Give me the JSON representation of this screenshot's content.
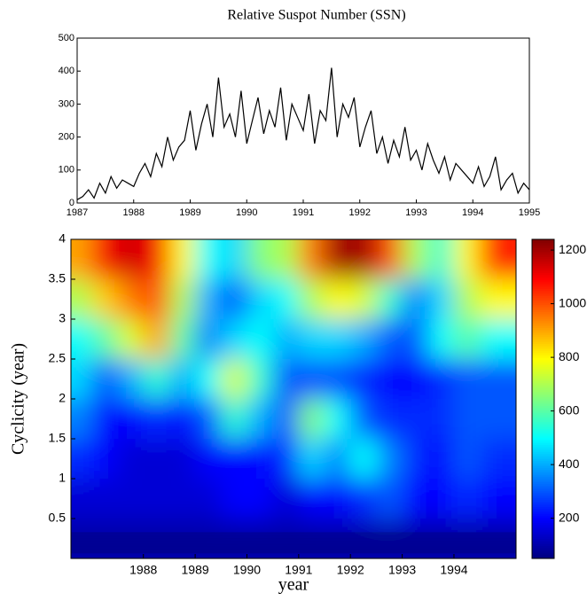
{
  "chart_data": [
    {
      "type": "line",
      "title": "Relative Suspot Number (SSN)",
      "color": "#000000",
      "x": [
        1987.0,
        1987.1,
        1987.2,
        1987.3,
        1987.4,
        1987.5,
        1987.6,
        1987.7,
        1987.8,
        1987.9,
        1988.0,
        1988.1,
        1988.2,
        1988.3,
        1988.4,
        1988.5,
        1988.6,
        1988.7,
        1988.8,
        1988.9,
        1989.0,
        1989.1,
        1989.2,
        1989.3,
        1989.4,
        1989.5,
        1989.6,
        1989.7,
        1989.8,
        1989.9,
        1990.0,
        1990.1,
        1990.2,
        1990.3,
        1990.4,
        1990.5,
        1990.6,
        1990.7,
        1990.8,
        1990.9,
        1991.0,
        1991.1,
        1991.2,
        1991.3,
        1991.4,
        1991.5,
        1991.6,
        1991.7,
        1991.8,
        1991.9,
        1992.0,
        1992.1,
        1992.2,
        1992.3,
        1992.4,
        1992.5,
        1992.6,
        1992.7,
        1992.8,
        1992.9,
        1993.0,
        1993.1,
        1993.2,
        1993.3,
        1993.4,
        1993.5,
        1993.6,
        1993.7,
        1993.8,
        1993.9,
        1994.0,
        1994.1,
        1994.2,
        1994.3,
        1994.4,
        1994.5,
        1994.6,
        1994.7,
        1994.8,
        1994.9,
        1995.0
      ],
      "values": [
        10,
        20,
        40,
        15,
        60,
        30,
        80,
        45,
        70,
        60,
        50,
        90,
        120,
        80,
        150,
        110,
        200,
        130,
        170,
        190,
        280,
        160,
        240,
        300,
        200,
        380,
        230,
        270,
        200,
        340,
        180,
        250,
        320,
        210,
        280,
        230,
        350,
        190,
        300,
        260,
        220,
        330,
        180,
        280,
        250,
        410,
        200,
        300,
        260,
        320,
        170,
        230,
        280,
        150,
        200,
        120,
        190,
        140,
        230,
        130,
        160,
        100,
        180,
        130,
        90,
        140,
        70,
        120,
        100,
        80,
        60,
        110,
        50,
        80,
        140,
        40,
        70,
        90,
        30,
        60,
        40
      ],
      "xlim": [
        1987,
        1995
      ],
      "xticks": [
        1987,
        1988,
        1989,
        1990,
        1991,
        1992,
        1993,
        1994,
        1995
      ],
      "ylim": [
        0,
        500
      ],
      "yticks": [
        0,
        100,
        200,
        300,
        400,
        500
      ]
    },
    {
      "type": "heatmap",
      "xlabel": "year",
      "ylabel": "Cyclicity (year)",
      "colormap": "jet",
      "x": [
        1986.75,
        1987.25,
        1987.75,
        1988.25,
        1988.75,
        1989.25,
        1989.75,
        1990.25,
        1990.75,
        1991.25,
        1991.75,
        1992.25,
        1992.75,
        1993.25,
        1993.75,
        1994.25,
        1994.75
      ],
      "y": [
        3.75,
        3.25,
        2.75,
        2.25,
        1.75,
        1.25,
        0.75,
        0.25
      ],
      "z": [
        [
          900,
          1100,
          1150,
          1100,
          800,
          500,
          450,
          650,
          700,
          950,
          1200,
          1200,
          1000,
          700,
          550,
          800,
          1050
        ],
        [
          700,
          850,
          950,
          1000,
          700,
          400,
          300,
          450,
          500,
          700,
          800,
          750,
          550,
          350,
          450,
          700,
          800
        ],
        [
          500,
          600,
          750,
          900,
          600,
          350,
          450,
          500,
          400,
          450,
          450,
          400,
          300,
          300,
          500,
          600,
          500
        ],
        [
          450,
          300,
          400,
          550,
          400,
          500,
          750,
          550,
          300,
          300,
          300,
          250,
          200,
          200,
          250,
          300,
          300
        ],
        [
          350,
          200,
          200,
          250,
          200,
          300,
          550,
          400,
          300,
          650,
          500,
          300,
          250,
          250,
          250,
          300,
          300
        ],
        [
          250,
          200,
          150,
          150,
          150,
          200,
          200,
          200,
          250,
          450,
          350,
          500,
          350,
          250,
          200,
          300,
          250
        ],
        [
          150,
          150,
          150,
          150,
          150,
          150,
          200,
          200,
          150,
          200,
          200,
          250,
          300,
          200,
          200,
          250,
          200
        ],
        [
          100,
          100,
          100,
          100,
          100,
          100,
          100,
          100,
          100,
          100,
          100,
          100,
          100,
          100,
          100,
          100,
          100
        ]
      ],
      "xlim": [
        1986.6,
        1995.2
      ],
      "xticks": [
        1988,
        1989,
        1990,
        1991,
        1992,
        1993,
        1994
      ],
      "ylim": [
        0,
        4
      ],
      "yticks": [
        0.5,
        1,
        1.5,
        2,
        2.5,
        3,
        3.5,
        4
      ],
      "clim": [
        50,
        1240
      ],
      "cticks": [
        200,
        400,
        600,
        800,
        1000,
        1200
      ]
    }
  ]
}
